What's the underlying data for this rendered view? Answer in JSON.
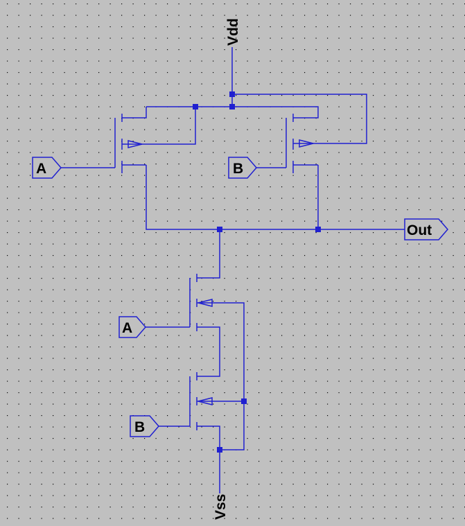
{
  "schematic": {
    "rails": {
      "vdd": "Vdd",
      "vss": "Vss"
    },
    "output": "Out",
    "inputs": {
      "pmos_left": "A",
      "pmos_right": "B",
      "nmos_top": "A",
      "nmos_bottom": "B"
    },
    "colors": {
      "background": "#c0c0c0",
      "wire": "#2020d0",
      "grid_dot": "#000000",
      "label": "#000000"
    }
  }
}
